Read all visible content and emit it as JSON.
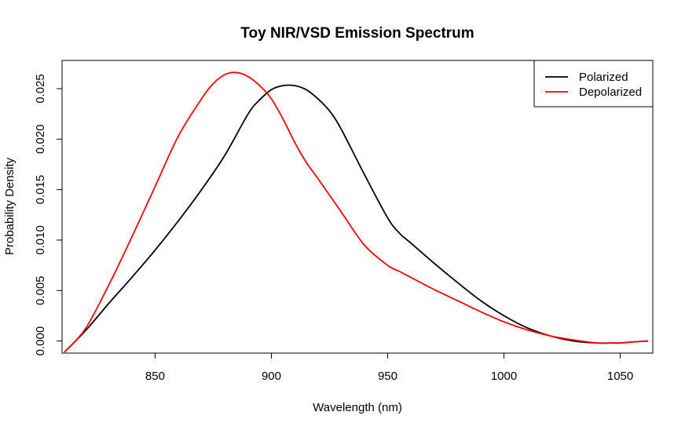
{
  "chart_data": {
    "type": "line",
    "title": "Toy NIR/VSD Emission Spectrum",
    "xlabel": "Wavelength (nm)",
    "ylabel": "Probability Density",
    "xlim": [
      810,
      1064
    ],
    "ylim": [
      -0.0012,
      0.0278
    ],
    "x_ticks": [
      850,
      900,
      950,
      1000,
      1050
    ],
    "y_ticks": [
      0.0,
      0.005,
      0.01,
      0.015,
      0.02,
      0.025
    ],
    "x_tick_labels": [
      "850",
      "900",
      "950",
      "1000",
      "1050"
    ],
    "y_tick_labels": [
      "0.000",
      "0.005",
      "0.010",
      "0.015",
      "0.020",
      "0.025"
    ],
    "legend_position": "top-right",
    "grid": false,
    "series": [
      {
        "name": "Polarized",
        "color": "#000000",
        "x": [
          811,
          820,
          830,
          840,
          850,
          860,
          870,
          880,
          890,
          895,
          900,
          905,
          910,
          915,
          920,
          925,
          930,
          940,
          950,
          955,
          960,
          970,
          980,
          990,
          1000,
          1010,
          1020,
          1030,
          1040,
          1046,
          1050,
          1055,
          1062
        ],
        "y": [
          -0.0011,
          0.001,
          0.0037,
          0.0063,
          0.009,
          0.0119,
          0.015,
          0.0184,
          0.0225,
          0.0239,
          0.0249,
          0.0253,
          0.0253,
          0.0249,
          0.024,
          0.0228,
          0.021,
          0.0165,
          0.0122,
          0.0107,
          0.0097,
          0.0077,
          0.0058,
          0.004,
          0.0025,
          0.0013,
          0.0005,
          0.0,
          -0.0002,
          -0.0002,
          -0.0002,
          -0.0001,
          0.0
        ]
      },
      {
        "name": "Depolarized",
        "color": "#ff0000",
        "x": [
          811,
          820,
          830,
          840,
          850,
          860,
          870,
          875,
          880,
          885,
          890,
          895,
          900,
          905,
          910,
          915,
          920,
          930,
          940,
          950,
          955,
          960,
          970,
          980,
          990,
          1000,
          1010,
          1020,
          1030,
          1040,
          1046,
          1050,
          1055,
          1062
        ],
        "y": [
          -0.0011,
          0.0012,
          0.0055,
          0.0103,
          0.0153,
          0.0203,
          0.024,
          0.0255,
          0.0264,
          0.0266,
          0.0262,
          0.0253,
          0.024,
          0.022,
          0.0197,
          0.0177,
          0.0161,
          0.0128,
          0.0095,
          0.0075,
          0.0069,
          0.0063,
          0.0051,
          0.004,
          0.0029,
          0.0019,
          0.0011,
          0.0005,
          0.0001,
          -0.0002,
          -0.0002,
          -0.0002,
          -0.0001,
          0.0
        ]
      }
    ]
  }
}
